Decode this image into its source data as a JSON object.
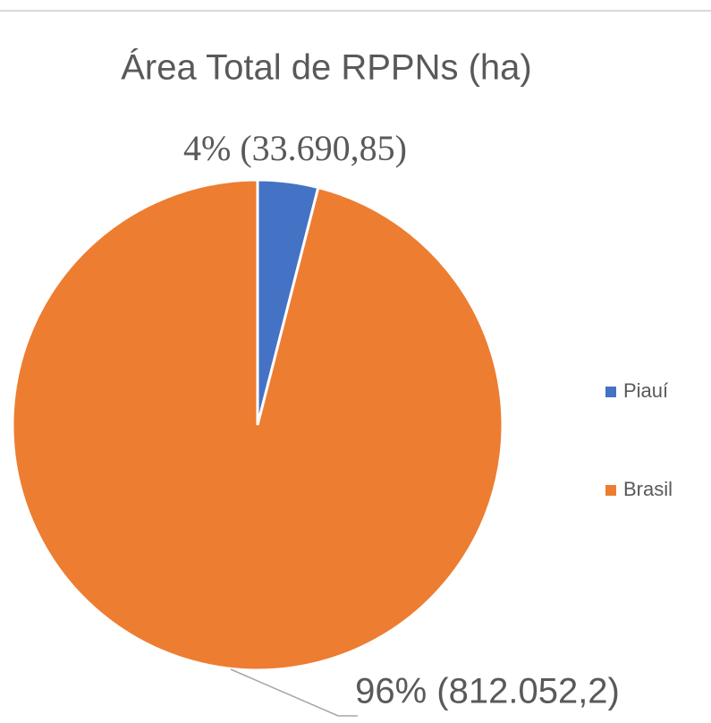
{
  "chart_data": {
    "type": "pie",
    "title": "Área Total de RPPNs (ha)",
    "categories": [
      "Piauí",
      "Brasil"
    ],
    "values": [
      33690.85,
      812052.2
    ],
    "value_labels": [
      "4% (33.690,85)",
      "96% (812.052,2)"
    ],
    "colors": [
      "#4472c4",
      "#ed7d31"
    ],
    "legend": "right"
  }
}
